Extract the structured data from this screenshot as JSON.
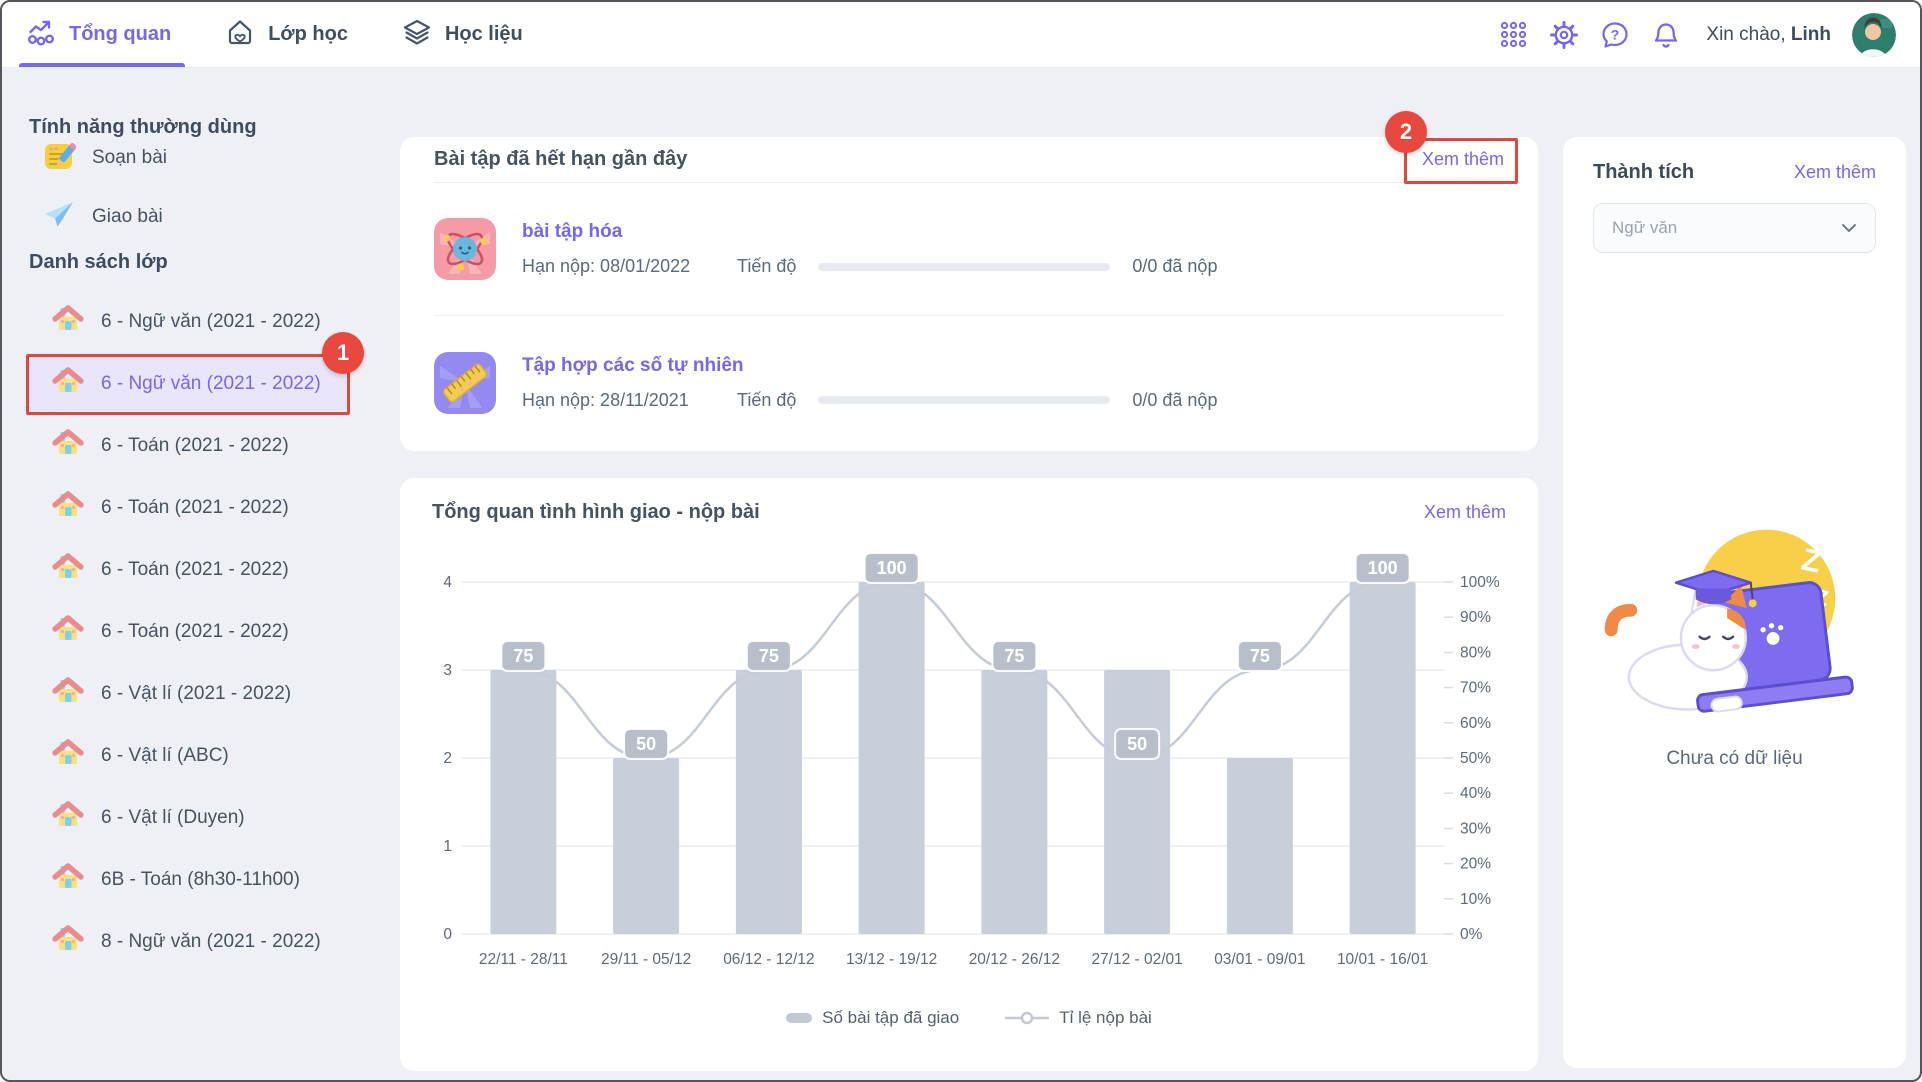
{
  "navbar": {
    "tabs": [
      {
        "label": "Tổng quan",
        "icon": "overview-chart-icon",
        "active": true
      },
      {
        "label": "Lớp học",
        "icon": "home-heart-icon",
        "active": false
      },
      {
        "label": "Học liệu",
        "icon": "layers-icon",
        "active": false
      }
    ],
    "icons": [
      "apps-grid-icon",
      "gear-icon",
      "help-icon",
      "bell-icon"
    ],
    "greeting_prefix": "Xin chào, ",
    "user_name": "Linh"
  },
  "sidebar": {
    "features_heading": "Tính năng thường dùng",
    "features": [
      {
        "label": "Soạn bài",
        "icon": "compose-note-icon"
      },
      {
        "label": "Giao bài",
        "icon": "paper-plane-icon"
      }
    ],
    "classes_heading": "Danh sách lớp",
    "classes": [
      {
        "label": "6 - Ngữ văn (2021 - 2022)",
        "selected": false
      },
      {
        "label": "6 - Ngữ văn (2021 - 2022)",
        "selected": true
      },
      {
        "label": "6 - Toán (2021 - 2022)",
        "selected": false
      },
      {
        "label": "6 - Toán (2021 - 2022)",
        "selected": false
      },
      {
        "label": "6 - Toán (2021 - 2022)",
        "selected": false
      },
      {
        "label": "6 - Toán (2021 - 2022)",
        "selected": false
      },
      {
        "label": "6 - Vật lí (2021 - 2022)",
        "selected": false
      },
      {
        "label": "6 - Vật lí (ABC)",
        "selected": false
      },
      {
        "label": "6 - Vật lí (Duyen)",
        "selected": false
      },
      {
        "label": "6B - Toán (8h30-11h00)",
        "selected": false
      },
      {
        "label": "8 - Ngữ văn (2021 - 2022)",
        "selected": false
      }
    ]
  },
  "assignments_card": {
    "title": "Bài tập đã hết hạn gần đây",
    "see_more": "Xem thêm",
    "items": [
      {
        "title": "bài tập hóa",
        "icon": "atom-subject-icon",
        "due": "Hạn nộp: 08/01/2022",
        "progress_label": "Tiến độ",
        "progress_percent": 0,
        "submitted": "0/0 đã nộp"
      },
      {
        "title": "Tập hợp các số tự nhiên",
        "icon": "ruler-subject-icon",
        "due": "Hạn nộp: 28/11/2021",
        "progress_label": "Tiến độ",
        "progress_percent": 0,
        "submitted": "0/0 đã nộp"
      }
    ]
  },
  "chart_card": {
    "title": "Tổng quan tình hình giao - nộp bài",
    "see_more": "Xem thêm"
  },
  "chart_data": {
    "type": "bar+line",
    "title": "Tổng quan tình hình giao - nộp bài",
    "categories": [
      "22/11 - 28/11",
      "29/11 - 05/12",
      "06/12 - 12/12",
      "13/12 - 19/12",
      "20/12 - 26/12",
      "27/12 - 02/01",
      "03/01 - 09/01",
      "10/01 - 16/01"
    ],
    "series": [
      {
        "name": "Số bài tập đã giao",
        "type": "bar",
        "axis": "left",
        "values": [
          3,
          2,
          3,
          4,
          3,
          3,
          2,
          4
        ]
      },
      {
        "name": "Tỉ lệ nộp bài",
        "type": "line",
        "axis": "right",
        "values": [
          75,
          50,
          75,
          100,
          75,
          50,
          75,
          100
        ],
        "labels": [
          "75",
          "50",
          "75",
          "100",
          "75",
          "50",
          "75",
          "100"
        ]
      }
    ],
    "left_axis": {
      "min": 0,
      "max": 4,
      "ticks": [
        0,
        1,
        2,
        3,
        4
      ]
    },
    "right_axis": {
      "min": 0,
      "max": 100,
      "ticks": [
        "0%",
        "10%",
        "20%",
        "30%",
        "40%",
        "50%",
        "60%",
        "70%",
        "80%",
        "90%",
        "100%"
      ]
    },
    "grid": true,
    "legend_position": "bottom",
    "colors": {
      "bar": "#c8ceda",
      "line": "#c6ccd7",
      "label_bg": "#b8bfcb",
      "label_text": "#ffffff",
      "gridline": "#e9ebf1",
      "axis_text": "#5d6a79"
    }
  },
  "achievements_panel": {
    "title": "Thành tích",
    "see_more": "Xem thêm",
    "subject_filter": "Ngữ văn",
    "empty_text": "Chưa có dữ liệu",
    "illustration": "sleeping-cat-laptop"
  },
  "annotations": {
    "color": "#e2473c",
    "sidebar_step": "1",
    "see_more_step": "2"
  }
}
